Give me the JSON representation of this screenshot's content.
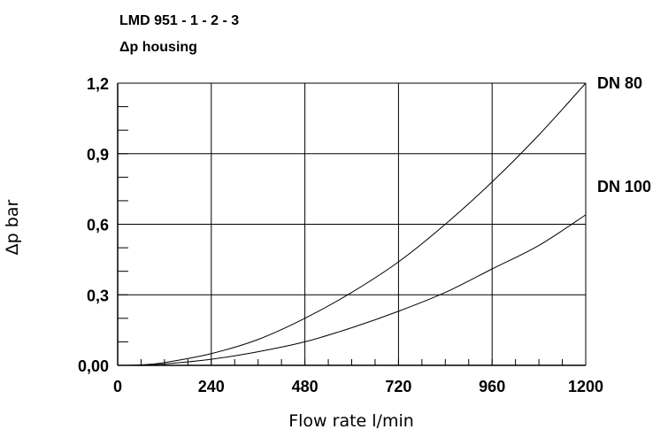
{
  "chart_data": {
    "type": "line",
    "title": "LMD 951 - 1 - 2 - 3",
    "subtitle": "Δp housing",
    "xlabel": "Flow rate l/min",
    "ylabel": "Δp bar",
    "xlim": [
      0,
      1200
    ],
    "ylim": [
      0,
      1.2
    ],
    "x_ticks": [
      "0",
      "240",
      "480",
      "720",
      "960",
      "1200"
    ],
    "y_ticks": [
      "0,00",
      "0,3",
      "0,6",
      "0,9",
      "1,2"
    ],
    "grid": true,
    "series": [
      {
        "name": "DN 80",
        "x": [
          0,
          60,
          120,
          240,
          360,
          480,
          600,
          720,
          840,
          960,
          1080,
          1200
        ],
        "y": [
          0,
          0.002,
          0.012,
          0.05,
          0.11,
          0.2,
          0.31,
          0.44,
          0.6,
          0.78,
          0.98,
          1.2
        ]
      },
      {
        "name": "DN 100",
        "x": [
          0,
          60,
          120,
          240,
          360,
          480,
          600,
          720,
          840,
          960,
          1080,
          1200
        ],
        "y": [
          0,
          0.001,
          0.006,
          0.026,
          0.058,
          0.1,
          0.16,
          0.23,
          0.31,
          0.41,
          0.51,
          0.64
        ]
      }
    ]
  }
}
